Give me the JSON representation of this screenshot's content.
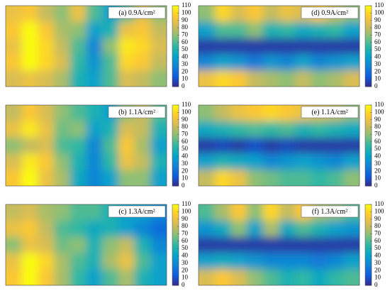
{
  "chart_data": [
    {
      "type": "contour",
      "title": "(a) 0.9A/cm²",
      "zlim": [
        0,
        110
      ],
      "zticks": [
        0,
        10,
        20,
        30,
        40,
        50,
        60,
        70,
        80,
        90,
        100,
        110
      ],
      "colormap": [
        "#352a87",
        "#0f5cdd",
        "#1481d6",
        "#06a4ca",
        "#2eb7a4",
        "#87bf77",
        "#d1bb59",
        "#fec832",
        "#f9fb0e"
      ],
      "z": [
        [
          90,
          95,
          80,
          70,
          90,
          60,
          40,
          60,
          85,
          70
        ],
        [
          95,
          110,
          95,
          75,
          70,
          40,
          50,
          90,
          95,
          80
        ],
        [
          90,
          110,
          100,
          80,
          60,
          30,
          70,
          105,
          100,
          85
        ],
        [
          95,
          110,
          100,
          85,
          55,
          35,
          60,
          100,
          95,
          80
        ],
        [
          85,
          90,
          85,
          75,
          50,
          40,
          60,
          85,
          80,
          70
        ]
      ]
    },
    {
      "type": "contour",
      "title": "(d) 0.9A/cm²",
      "zlim": [
        0,
        110
      ],
      "zticks": [
        0,
        10,
        20,
        30,
        40,
        50,
        60,
        70,
        80,
        90,
        100,
        110
      ],
      "colormap": [
        "#352a87",
        "#0f5cdd",
        "#1481d6",
        "#06a4ca",
        "#2eb7a4",
        "#87bf77",
        "#d1bb59",
        "#fec832",
        "#f9fb0e"
      ],
      "z": [
        [
          70,
          100,
          85,
          95,
          80,
          90,
          85,
          95,
          80,
          70
        ],
        [
          40,
          60,
          60,
          70,
          50,
          55,
          45,
          50,
          55,
          40
        ],
        [
          5,
          5,
          5,
          5,
          5,
          5,
          5,
          5,
          5,
          5
        ],
        [
          30,
          40,
          35,
          25,
          35,
          30,
          40,
          30,
          35,
          40
        ],
        [
          90,
          100,
          95,
          80,
          75,
          70,
          80,
          70,
          75,
          85
        ]
      ]
    },
    {
      "type": "contour",
      "title": "(b) 1.1A/cm²",
      "zlim": [
        0,
        110
      ],
      "zticks": [
        0,
        10,
        20,
        30,
        40,
        50,
        60,
        70,
        80,
        90,
        100,
        110
      ],
      "colormap": [
        "#352a87",
        "#0f5cdd",
        "#1481d6",
        "#06a4ca",
        "#2eb7a4",
        "#87bf77",
        "#d1bb59",
        "#fec832",
        "#f9fb0e"
      ],
      "z": [
        [
          80,
          95,
          85,
          70,
          60,
          50,
          40,
          70,
          80,
          60
        ],
        [
          90,
          105,
          90,
          65,
          70,
          40,
          50,
          85,
          80,
          50
        ],
        [
          70,
          80,
          85,
          60,
          55,
          30,
          60,
          95,
          75,
          40
        ],
        [
          85,
          105,
          95,
          70,
          50,
          30,
          55,
          90,
          80,
          50
        ],
        [
          95,
          110,
          90,
          75,
          45,
          30,
          40,
          70,
          70,
          40
        ]
      ]
    },
    {
      "type": "contour",
      "title": "(e) 1.1A/cm²",
      "zlim": [
        0,
        110
      ],
      "zticks": [
        0,
        10,
        20,
        30,
        40,
        50,
        60,
        70,
        80,
        90,
        100,
        110
      ],
      "colormap": [
        "#352a87",
        "#0f5cdd",
        "#1481d6",
        "#06a4ca",
        "#2eb7a4",
        "#87bf77",
        "#d1bb59",
        "#fec832",
        "#f9fb0e"
      ],
      "z": [
        [
          70,
          80,
          90,
          95,
          100,
          95,
          90,
          85,
          80,
          70
        ],
        [
          45,
          50,
          55,
          60,
          55,
          60,
          50,
          55,
          50,
          45
        ],
        [
          5,
          8,
          5,
          10,
          5,
          8,
          5,
          5,
          5,
          5
        ],
        [
          40,
          50,
          45,
          40,
          30,
          35,
          40,
          35,
          30,
          40
        ],
        [
          80,
          100,
          90,
          70,
          65,
          60,
          60,
          55,
          60,
          70
        ]
      ]
    },
    {
      "type": "contour",
      "title": "(c) 1.3A/cm²",
      "zlim": [
        0,
        110
      ],
      "zticks": [
        0,
        10,
        20,
        30,
        40,
        50,
        60,
        70,
        80,
        90,
        100,
        110
      ],
      "colormap": [
        "#352a87",
        "#0f5cdd",
        "#1481d6",
        "#06a4ca",
        "#2eb7a4",
        "#87bf77",
        "#d1bb59",
        "#fec832",
        "#f9fb0e"
      ],
      "z": [
        [
          80,
          85,
          75,
          70,
          60,
          60,
          50,
          40,
          40,
          30
        ],
        [
          90,
          95,
          80,
          60,
          55,
          45,
          50,
          40,
          30,
          20
        ],
        [
          70,
          90,
          85,
          65,
          70,
          50,
          70,
          80,
          50,
          30
        ],
        [
          90,
          110,
          100,
          75,
          60,
          50,
          75,
          90,
          60,
          40
        ],
        [
          95,
          110,
          95,
          75,
          55,
          40,
          60,
          75,
          50,
          40
        ]
      ]
    },
    {
      "type": "contour",
      "title": "(f) 1.3A/cm²",
      "zlim": [
        0,
        110
      ],
      "zticks": [
        0,
        10,
        20,
        30,
        40,
        50,
        60,
        70,
        80,
        90,
        100,
        110
      ],
      "colormap": [
        "#352a87",
        "#0f5cdd",
        "#1481d6",
        "#06a4ca",
        "#2eb7a4",
        "#87bf77",
        "#d1bb59",
        "#fec832",
        "#f9fb0e"
      ],
      "z": [
        [
          60,
          75,
          95,
          70,
          100,
          80,
          95,
          75,
          70,
          60
        ],
        [
          35,
          45,
          70,
          40,
          75,
          45,
          60,
          50,
          40,
          35
        ],
        [
          5,
          5,
          5,
          5,
          5,
          5,
          5,
          5,
          5,
          5
        ],
        [
          40,
          45,
          40,
          35,
          30,
          30,
          30,
          25,
          30,
          40
        ],
        [
          85,
          95,
          85,
          70,
          60,
          50,
          55,
          45,
          55,
          60
        ]
      ]
    }
  ]
}
